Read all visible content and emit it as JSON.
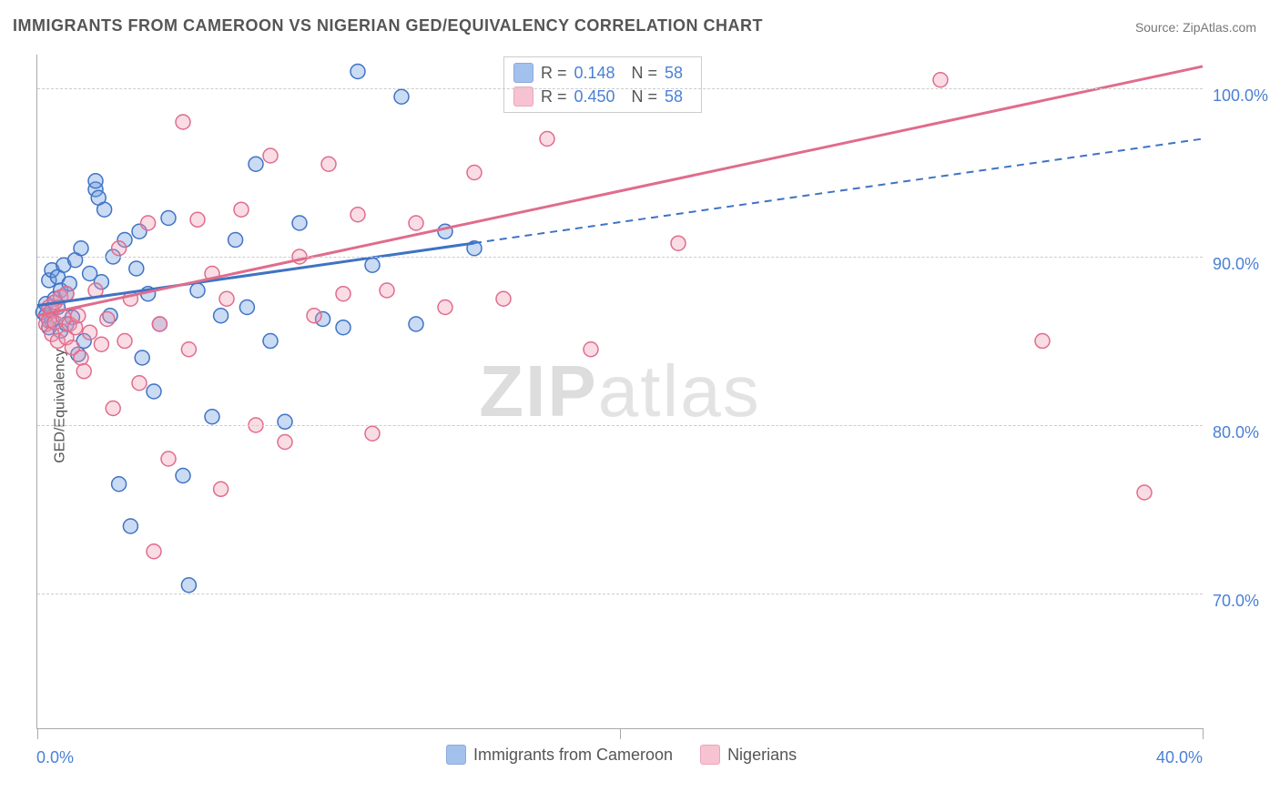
{
  "title": "IMMIGRANTS FROM CAMEROON VS NIGERIAN GED/EQUIVALENCY CORRELATION CHART",
  "source_label": "Source: ZipAtlas.com",
  "watermark_a": "ZIP",
  "watermark_b": "atlas",
  "chart": {
    "type": "scatter",
    "background_color": "#ffffff",
    "grid_color": "#cccccc",
    "axis_color": "#aaaaaa",
    "tick_label_color": "#4a80d6",
    "ylabel": "GED/Equivalency",
    "xlim": [
      0,
      40
    ],
    "ylim": [
      62,
      102
    ],
    "xtick_positions": [
      0,
      20,
      40
    ],
    "xtick_labels": [
      "0.0%",
      "",
      "40.0%"
    ],
    "ytick_positions": [
      70,
      80,
      90,
      100
    ],
    "ytick_labels": [
      "70.0%",
      "80.0%",
      "90.0%",
      "100.0%"
    ],
    "marker_radius": 8,
    "marker_fill_opacity": 0.35,
    "marker_stroke_width": 1.5,
    "series": [
      {
        "id": "cameroon",
        "label": "Immigrants from Cameroon",
        "color": "#6699e0",
        "stroke": "#3f73c4",
        "R_label": "R =",
        "R_value": "0.148",
        "N_label": "N =",
        "N_value": "58",
        "trend": {
          "x1": 0,
          "y1": 87.1,
          "x2": 40,
          "y2": 97.0,
          "solid_until_x": 15.0
        },
        "points": [
          [
            0.2,
            86.7
          ],
          [
            0.3,
            86.5
          ],
          [
            0.3,
            87.2
          ],
          [
            0.4,
            88.6
          ],
          [
            0.4,
            85.8
          ],
          [
            0.5,
            86.2
          ],
          [
            0.5,
            89.2
          ],
          [
            0.6,
            87.5
          ],
          [
            0.7,
            87.0
          ],
          [
            0.7,
            88.8
          ],
          [
            0.8,
            85.6
          ],
          [
            0.8,
            88.0
          ],
          [
            0.9,
            89.5
          ],
          [
            1.0,
            86.0
          ],
          [
            1.0,
            87.8
          ],
          [
            1.1,
            88.4
          ],
          [
            1.2,
            86.4
          ],
          [
            1.3,
            89.8
          ],
          [
            1.4,
            84.2
          ],
          [
            1.5,
            90.5
          ],
          [
            1.6,
            85.0
          ],
          [
            1.8,
            89.0
          ],
          [
            2.0,
            94.0
          ],
          [
            2.0,
            94.5
          ],
          [
            2.1,
            93.5
          ],
          [
            2.2,
            88.5
          ],
          [
            2.3,
            92.8
          ],
          [
            2.5,
            86.5
          ],
          [
            2.6,
            90.0
          ],
          [
            2.8,
            76.5
          ],
          [
            3.0,
            91.0
          ],
          [
            3.2,
            74.0
          ],
          [
            3.4,
            89.3
          ],
          [
            3.5,
            91.5
          ],
          [
            3.6,
            84.0
          ],
          [
            3.8,
            87.8
          ],
          [
            4.0,
            82.0
          ],
          [
            4.2,
            86.0
          ],
          [
            4.5,
            92.3
          ],
          [
            5.0,
            77.0
          ],
          [
            5.2,
            70.5
          ],
          [
            5.5,
            88.0
          ],
          [
            6.0,
            80.5
          ],
          [
            6.3,
            86.5
          ],
          [
            6.8,
            91.0
          ],
          [
            7.2,
            87.0
          ],
          [
            7.5,
            95.5
          ],
          [
            8.0,
            85.0
          ],
          [
            8.5,
            80.2
          ],
          [
            9.0,
            92.0
          ],
          [
            9.8,
            86.3
          ],
          [
            10.5,
            85.8
          ],
          [
            11.0,
            101.0
          ],
          [
            11.5,
            89.5
          ],
          [
            12.5,
            99.5
          ],
          [
            13.0,
            86.0
          ],
          [
            14.0,
            91.5
          ],
          [
            15.0,
            90.5
          ]
        ]
      },
      {
        "id": "nigerians",
        "label": "Nigerians",
        "color": "#f29bb3",
        "stroke": "#e06c8c",
        "R_label": "R =",
        "R_value": "0.450",
        "N_label": "N =",
        "N_value": "58",
        "trend": {
          "x1": 0,
          "y1": 86.5,
          "x2": 40,
          "y2": 101.3,
          "solid_until_x": 40
        },
        "points": [
          [
            0.3,
            86.0
          ],
          [
            0.4,
            86.2
          ],
          [
            0.4,
            87.0
          ],
          [
            0.5,
            85.4
          ],
          [
            0.5,
            86.8
          ],
          [
            0.6,
            87.3
          ],
          [
            0.6,
            86.1
          ],
          [
            0.7,
            85.0
          ],
          [
            0.8,
            87.6
          ],
          [
            0.9,
            86.4
          ],
          [
            1.0,
            85.2
          ],
          [
            1.0,
            87.8
          ],
          [
            1.1,
            86.0
          ],
          [
            1.2,
            84.6
          ],
          [
            1.3,
            85.8
          ],
          [
            1.4,
            86.5
          ],
          [
            1.5,
            84.0
          ],
          [
            1.6,
            83.2
          ],
          [
            1.8,
            85.5
          ],
          [
            2.0,
            88.0
          ],
          [
            2.2,
            84.8
          ],
          [
            2.4,
            86.3
          ],
          [
            2.6,
            81.0
          ],
          [
            2.8,
            90.5
          ],
          [
            3.0,
            85.0
          ],
          [
            3.2,
            87.5
          ],
          [
            3.5,
            82.5
          ],
          [
            3.8,
            92.0
          ],
          [
            4.0,
            72.5
          ],
          [
            4.2,
            86.0
          ],
          [
            4.5,
            78.0
          ],
          [
            5.0,
            98.0
          ],
          [
            5.2,
            84.5
          ],
          [
            5.5,
            92.2
          ],
          [
            6.0,
            89.0
          ],
          [
            6.3,
            76.2
          ],
          [
            6.5,
            87.5
          ],
          [
            7.0,
            92.8
          ],
          [
            7.5,
            80.0
          ],
          [
            8.0,
            96.0
          ],
          [
            8.5,
            79.0
          ],
          [
            9.0,
            90.0
          ],
          [
            9.5,
            86.5
          ],
          [
            10.0,
            95.5
          ],
          [
            10.5,
            87.8
          ],
          [
            11.0,
            92.5
          ],
          [
            11.5,
            79.5
          ],
          [
            12.0,
            88.0
          ],
          [
            13.0,
            92.0
          ],
          [
            14.0,
            87.0
          ],
          [
            15.0,
            95.0
          ],
          [
            16.0,
            87.5
          ],
          [
            17.5,
            97.0
          ],
          [
            19.0,
            84.5
          ],
          [
            22.0,
            90.8
          ],
          [
            31.0,
            100.5
          ],
          [
            34.5,
            85.0
          ],
          [
            38.0,
            76.0
          ]
        ]
      }
    ]
  },
  "legend_bottom": {
    "items": [
      {
        "label": "Immigrants from Cameroon",
        "color": "#6699e0",
        "stroke": "#3f73c4"
      },
      {
        "label": "Nigerians",
        "color": "#f29bb3",
        "stroke": "#e06c8c"
      }
    ]
  }
}
